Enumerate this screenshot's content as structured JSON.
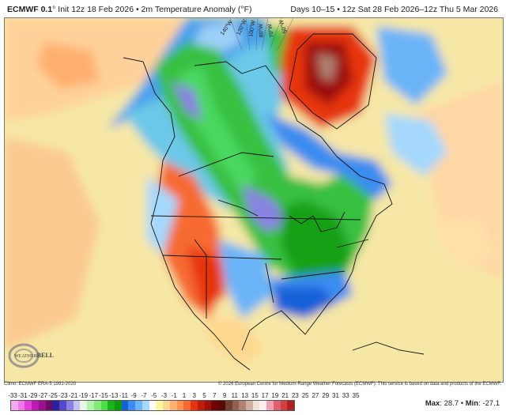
{
  "header": {
    "model": "ECMWF 0.1",
    "model_suffix": "°",
    "title": " Init 12z 18 Feb 2026 • 2m Temperature Anomaly (°F)",
    "valid": "Days 10–15 • 12z Sat 28 Feb 2026–12z Thu 5 Mar 2026"
  },
  "map": {
    "longitude_labels": [
      "140°W",
      "120°W",
      "100°W",
      "80°W",
      "70°W",
      "50°W"
    ],
    "watermark": "WeatherBELL"
  },
  "footer": {
    "climo": "Climo: ECMWF ERA-5 1991-2020",
    "copyright": "© 2026 European Centre for Medium-Range Weather Forecasts (ECMWF). This service is based on data and products of the ECMWF."
  },
  "colorbar": {
    "labels": [
      "-33",
      "-31",
      "-29",
      "-27",
      "-25",
      "-23",
      "-21",
      "-19",
      "-17",
      "-15",
      "-13",
      "-11",
      "-9",
      "-7",
      "-5",
      "-3",
      "-1",
      "1",
      "3",
      "5",
      "7",
      "9",
      "11",
      "13",
      "15",
      "17",
      "19",
      "21",
      "23",
      "25",
      "27",
      "29",
      "31",
      "33",
      "35"
    ],
    "colors": [
      "#f4a8ee",
      "#ee78e6",
      "#e43cd6",
      "#c018b4",
      "#9a1090",
      "#6a0c62",
      "#2c1ea0",
      "#5248c8",
      "#8a82e2",
      "#c4c0f4",
      "#e8f8e8",
      "#b4f4a8",
      "#84ea78",
      "#4cdc48",
      "#18b418",
      "#0e9a10",
      "#1460d8",
      "#3a8cf0",
      "#6cb4f8",
      "#a4d8fc",
      "#ffffff",
      "#fff7a0",
      "#ffd890",
      "#ffb070",
      "#ff9050",
      "#f66a30",
      "#e63410",
      "#c01c08",
      "#9c1008",
      "#700404",
      "#5a0a02",
      "#704030",
      "#906050",
      "#b08070",
      "#d0b0a0",
      "#f0e0d8",
      "#fff0f0",
      "#f4a0b0",
      "#e06070",
      "#d04040",
      "#b02020"
    ],
    "max_label": "Max",
    "max_value": ": 28.7 • ",
    "min_label": "Min",
    "min_value": ": -27.1"
  }
}
